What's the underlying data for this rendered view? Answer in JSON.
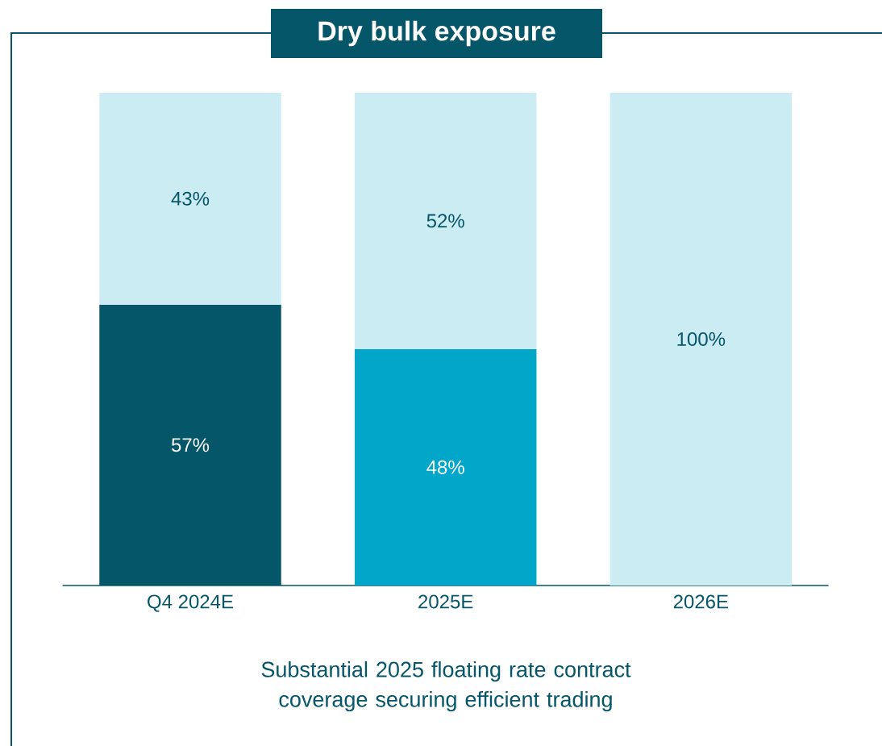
{
  "chart_data": {
    "type": "bar",
    "title": "Dry bulk exposure",
    "stacked": true,
    "tick_labels": "x",
    "categories": [
      "Q4 2024E",
      "2025E",
      "2026E"
    ],
    "ylim": [
      0,
      100
    ],
    "series": [
      {
        "colors": [
          "#06566a",
          "#02a6c9",
          "#02a6c9"
        ],
        "values": [
          57,
          48,
          0
        ],
        "value_labels": [
          "57%",
          "48%",
          null
        ]
      },
      {
        "color": "#ccecf3",
        "values": [
          43,
          52,
          100
        ],
        "value_labels": [
          "43%",
          "52%",
          "100%"
        ]
      }
    ],
    "annotations": [
      "Substantial 2025 floating rate contract coverage securing efficient trading"
    ]
  }
}
